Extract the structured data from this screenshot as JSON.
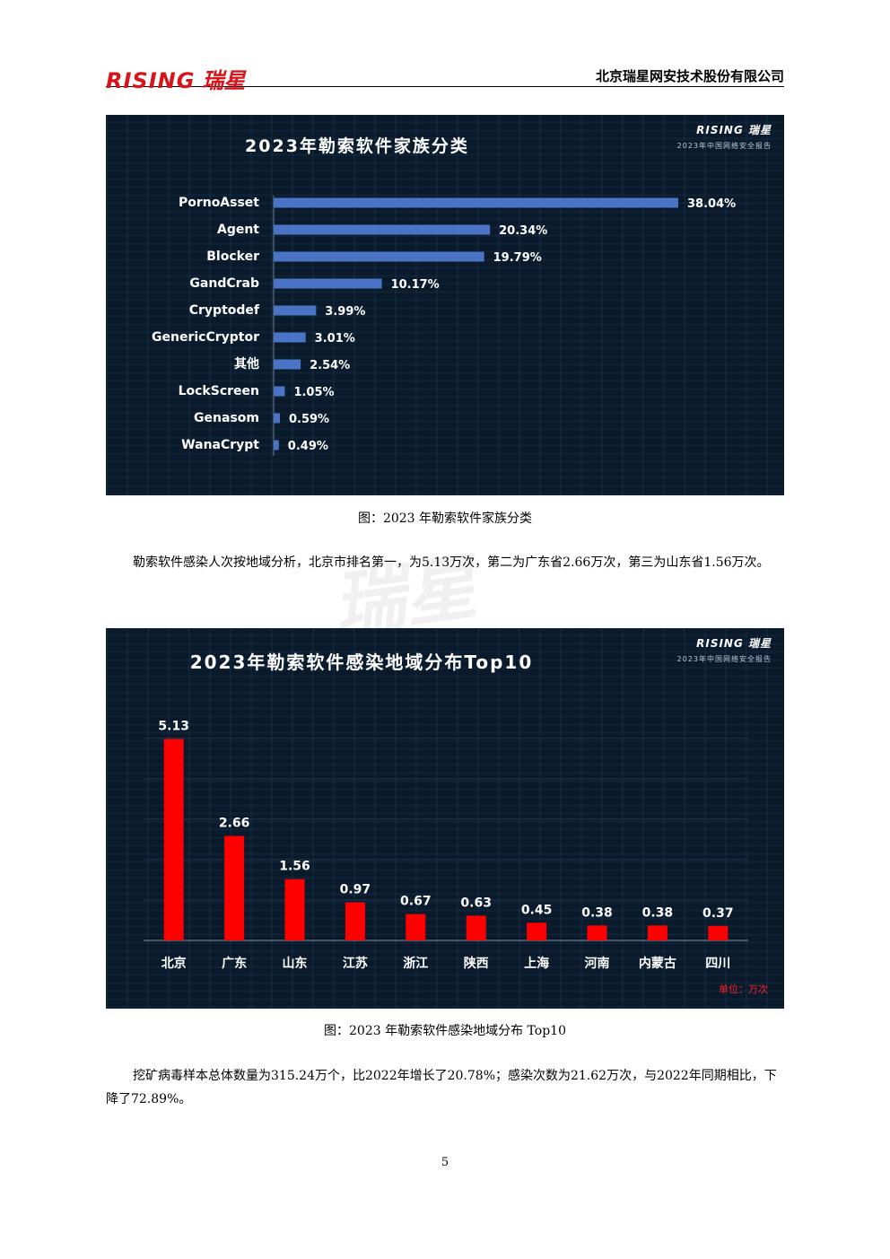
{
  "header": {
    "logo_latin": "RISING",
    "logo_cn": "瑞星",
    "company": "北京瑞星网安技术股份有限公司"
  },
  "watermark": "瑞星",
  "charts_brand": {
    "logo": "RISING 瑞星",
    "subtitle": "2023年中国网络安全报告"
  },
  "figure1": {
    "caption": "图：2023 年勒索软件家族分类"
  },
  "paragraph1": "勒索软件感染人次按地域分析，北京市排名第一，为5.13万次，第二为广东省2.66万次，第三为山东省1.56万次。",
  "figure2": {
    "caption": "图：2023 年勒索软件感染地域分布 Top10",
    "unit": "单位：万次"
  },
  "paragraph2": "挖矿病毒样本总体数量为315.24万个，比2022年增长了20.78%；感染次数为21.62万次，与2022年同期相比，下降了72.89%。",
  "page_number": "5",
  "colors": {
    "bar_blue": "#4a74c6",
    "bar_red": "#ff0000",
    "panel_bg": "#0a1a2b",
    "logo_red": "#d7141a"
  },
  "chart_data": [
    {
      "type": "bar",
      "orientation": "horizontal",
      "title": "2023年勒索软件家族分类",
      "categories": [
        "PornoAsset",
        "Agent",
        "Blocker",
        "GandCrab",
        "Cryptodef",
        "GenericCryptor",
        "其他",
        "LockScreen",
        "Genasom",
        "WanaCrypt"
      ],
      "values": [
        38.04,
        20.34,
        19.79,
        10.17,
        3.99,
        3.01,
        2.54,
        1.05,
        0.59,
        0.49
      ],
      "labels": [
        "38.04%",
        "20.34%",
        "19.79%",
        "10.17%",
        "3.99%",
        "3.01%",
        "2.54%",
        "1.05%",
        "0.59%",
        "0.49%"
      ]
    },
    {
      "type": "bar",
      "title": "2023年勒索软件感染地域分布Top10",
      "categories": [
        "北京",
        "广东",
        "山东",
        "江苏",
        "浙江",
        "陕西",
        "上海",
        "河南",
        "内蒙古",
        "四川"
      ],
      "values": [
        5.13,
        2.66,
        1.56,
        0.97,
        0.67,
        0.63,
        0.45,
        0.38,
        0.38,
        0.37
      ],
      "labels": [
        "5.13",
        "2.66",
        "1.56",
        "0.97",
        "0.67",
        "0.63",
        "0.45",
        "0.38",
        "0.38",
        "0.37"
      ],
      "ylim": [
        0,
        5.5
      ],
      "grid": true,
      "unit": "单位：万次"
    }
  ]
}
